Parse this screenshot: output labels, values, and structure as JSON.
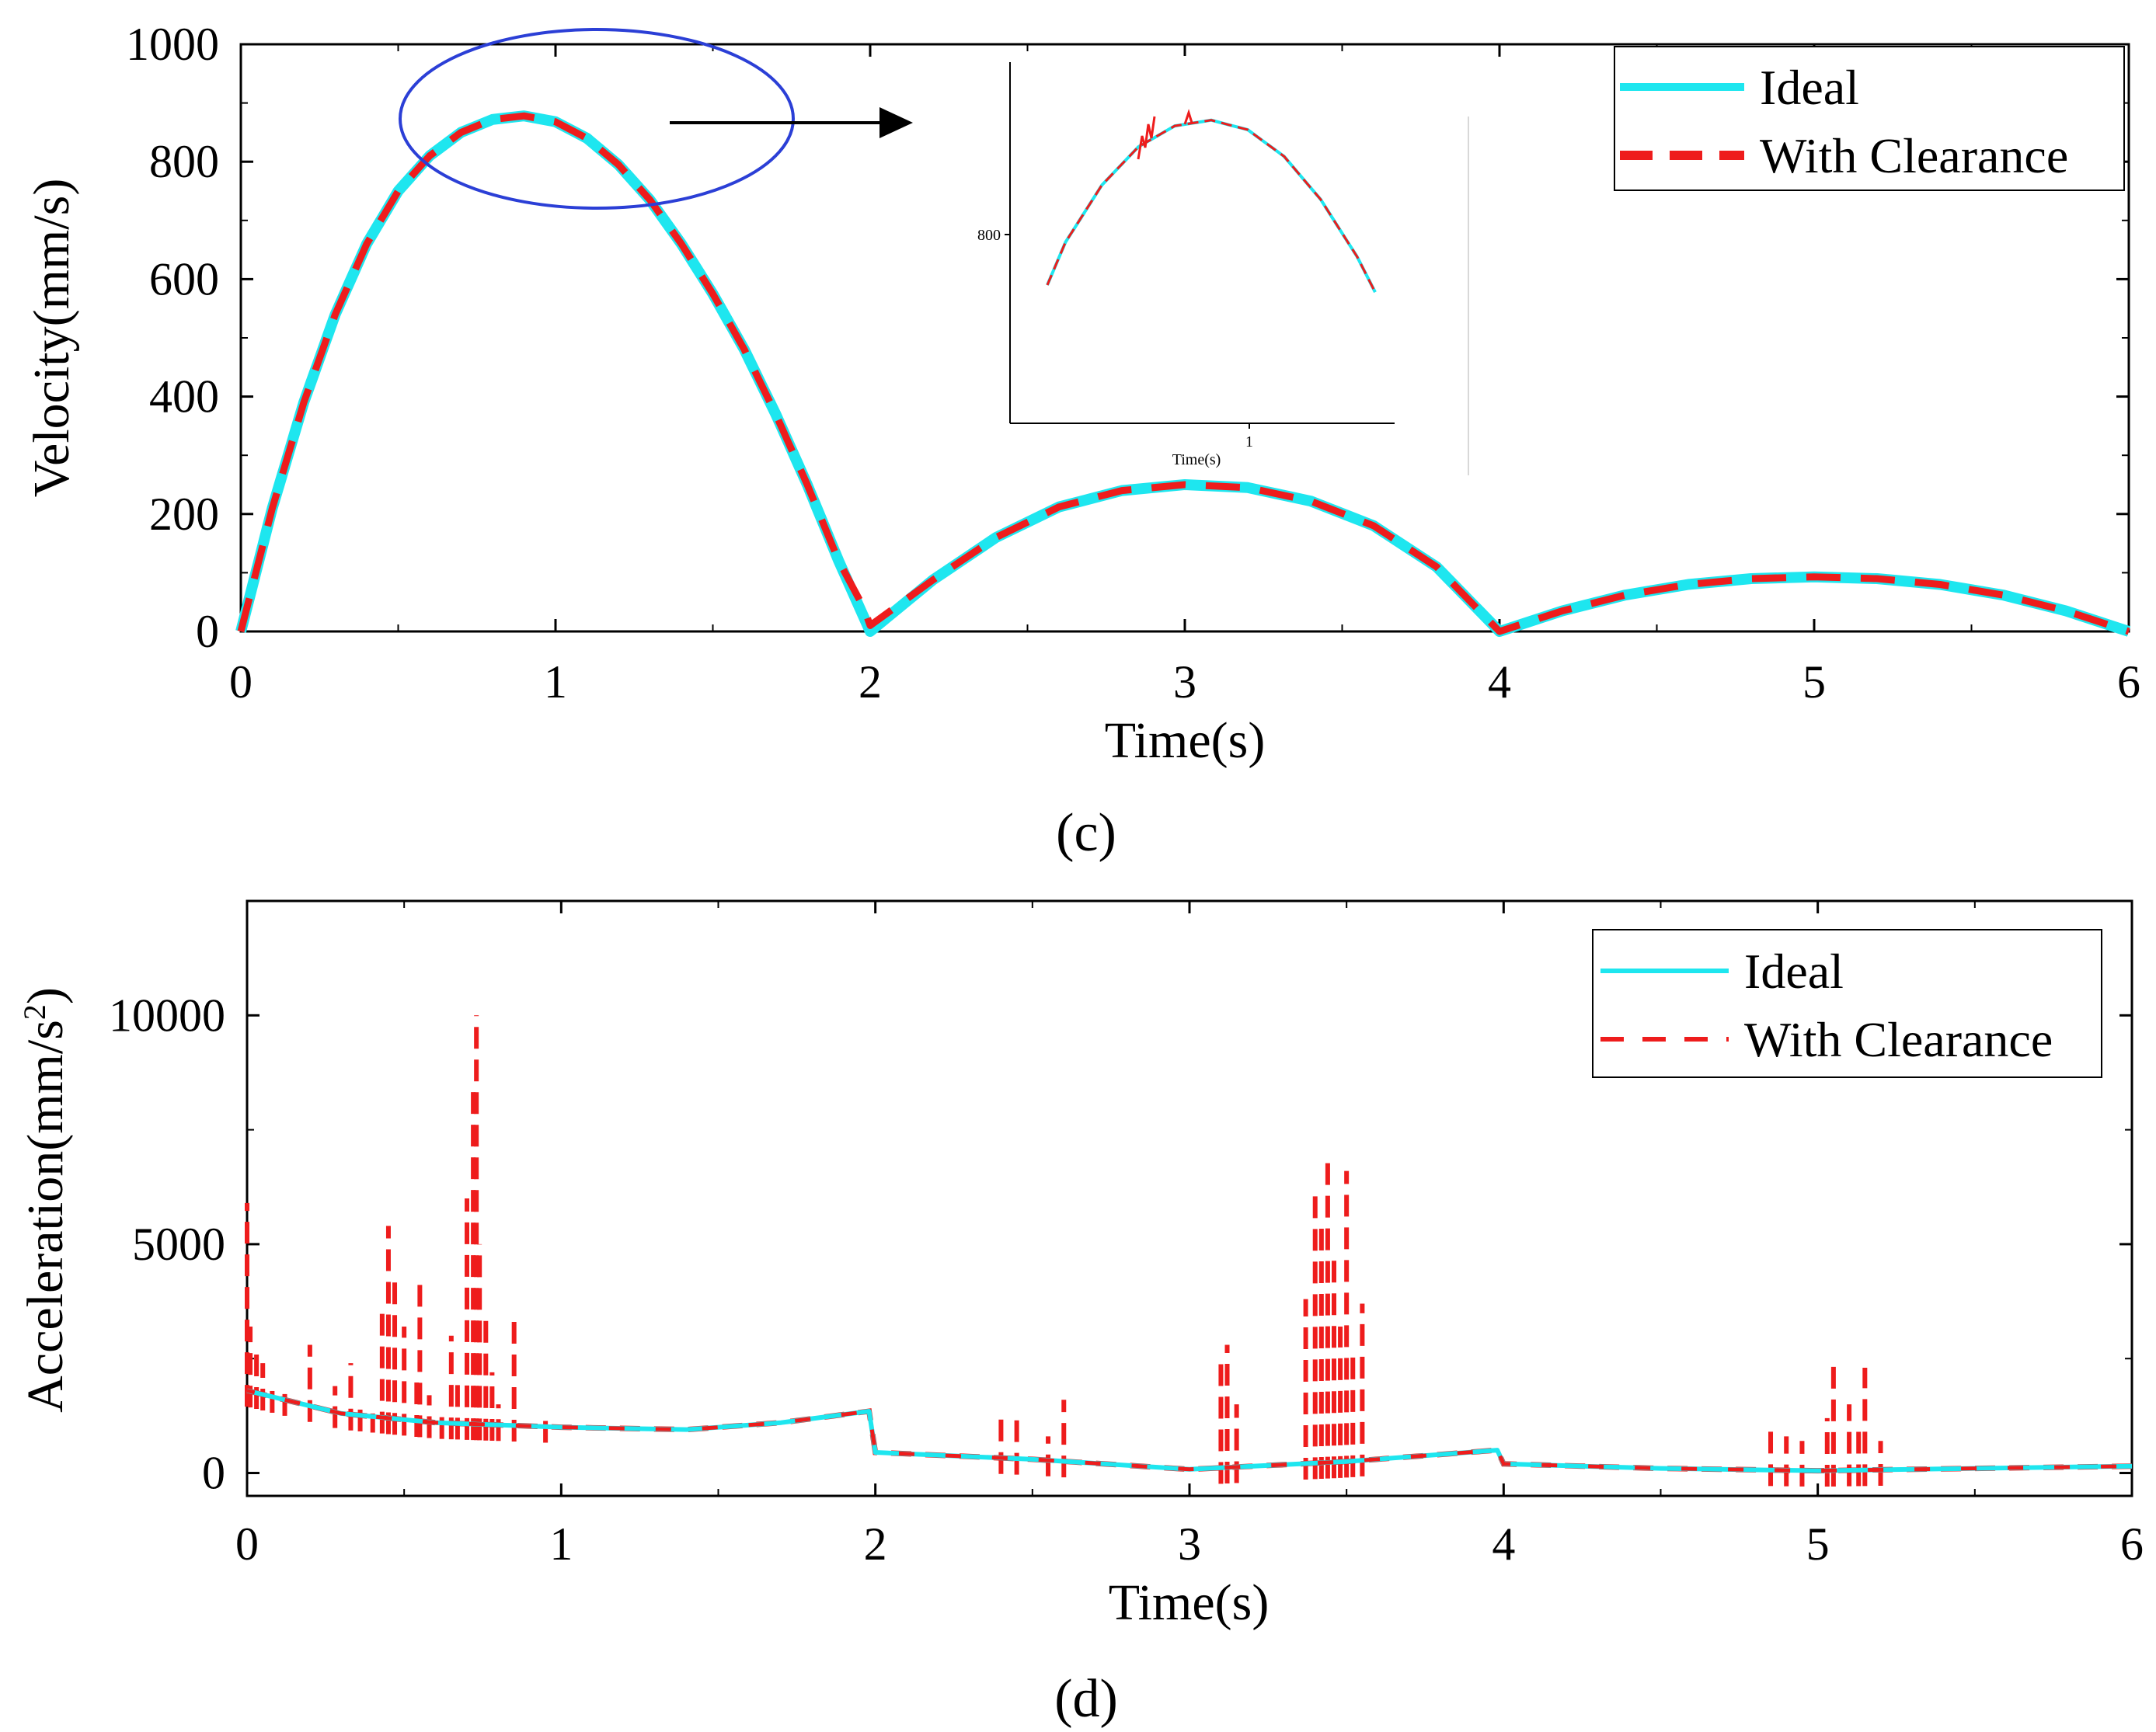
{
  "colors": {
    "ideal": "#1ee6ef",
    "clearance": "#ee1c1c",
    "highlight": "#2b3fd6",
    "axis": "#000000"
  },
  "chart_data": [
    {
      "type": "line",
      "panel_label": "(c)",
      "xlabel": "Time(s)",
      "ylabel": "Velocity(mm/s)",
      "xlim": [
        0,
        6
      ],
      "ylim": [
        0,
        1000
      ],
      "xticks": [
        0,
        1,
        2,
        3,
        4,
        5,
        6
      ],
      "xtick_labels": [
        "0",
        "1",
        "2",
        "3",
        "4",
        "5",
        "6"
      ],
      "yticks": [
        0,
        200,
        400,
        600,
        800,
        1000
      ],
      "ytick_labels": [
        "0",
        "200",
        "400",
        "600",
        "800",
        "1000"
      ],
      "legend": {
        "position": "top-right",
        "entries": [
          "Ideal",
          "With Clearance"
        ]
      },
      "series": [
        {
          "name": "Ideal",
          "style": "solid",
          "x": [
            0,
            0.1,
            0.2,
            0.3,
            0.4,
            0.5,
            0.6,
            0.7,
            0.8,
            0.9,
            1.0,
            1.1,
            1.2,
            1.3,
            1.4,
            1.5,
            1.6,
            1.7,
            1.8,
            1.9,
            2.0,
            2.2,
            2.4,
            2.6,
            2.8,
            3.0,
            3.2,
            3.4,
            3.6,
            3.8,
            4.0,
            4.2,
            4.4,
            4.6,
            4.8,
            5.0,
            5.2,
            5.4,
            5.6,
            5.8,
            6.0
          ],
          "y": [
            0,
            210,
            390,
            540,
            660,
            750,
            810,
            850,
            872,
            878,
            868,
            840,
            795,
            735,
            660,
            575,
            480,
            370,
            250,
            120,
            0,
            88,
            160,
            212,
            240,
            250,
            245,
            222,
            180,
            110,
            0,
            35,
            62,
            80,
            90,
            93,
            90,
            80,
            62,
            35,
            0
          ]
        },
        {
          "name": "With Clearance",
          "style": "dashed",
          "x": [
            0,
            0.1,
            0.2,
            0.3,
            0.4,
            0.5,
            0.6,
            0.7,
            0.8,
            0.9,
            1.0,
            1.1,
            1.2,
            1.3,
            1.4,
            1.5,
            1.6,
            1.7,
            1.8,
            1.9,
            1.98,
            2.0,
            2.2,
            2.4,
            2.6,
            2.8,
            3.0,
            3.2,
            3.4,
            3.6,
            3.8,
            4.0,
            4.2,
            4.4,
            4.6,
            4.8,
            5.0,
            5.2,
            5.4,
            5.6,
            5.8,
            6.0
          ],
          "y": [
            0,
            210,
            390,
            540,
            660,
            750,
            810,
            850,
            872,
            878,
            868,
            840,
            795,
            735,
            660,
            575,
            480,
            370,
            250,
            120,
            40,
            10,
            88,
            160,
            212,
            240,
            250,
            245,
            222,
            180,
            110,
            0,
            35,
            62,
            80,
            90,
            93,
            90,
            80,
            62,
            35,
            0
          ]
        }
      ],
      "annotations": {
        "highlight_region": {
          "x_center": 0.95,
          "y_center": 830
        },
        "inset": {
          "xlabel": "Time(s)",
          "ytick_label": "800",
          "xtick_label": "1"
        }
      }
    },
    {
      "type": "line",
      "panel_label": "(d)",
      "xlabel": "Time(s)",
      "ylabel": "Acceleration(mm/s",
      "ylabel_superscript": "2",
      "ylabel_suffix": ")",
      "xlim": [
        0,
        6
      ],
      "ylim": [
        -500,
        12500
      ],
      "xticks": [
        0,
        1,
        2,
        3,
        4,
        5,
        6
      ],
      "xtick_labels": [
        "0",
        "1",
        "2",
        "3",
        "4",
        "5",
        "6"
      ],
      "yticks": [
        0,
        5000,
        10000
      ],
      "ytick_labels": [
        "0",
        "5000",
        "10000"
      ],
      "legend": {
        "position": "top-right",
        "entries": [
          "Ideal",
          "With Clearance"
        ]
      },
      "series": [
        {
          "name": "Ideal",
          "style": "solid",
          "x": [
            0,
            0.3,
            0.6,
            1.0,
            1.4,
            1.7,
            1.98,
            2.0,
            2.5,
            3.0,
            3.5,
            3.98,
            4.0,
            4.5,
            5.0,
            5.5,
            6.0
          ],
          "y": [
            1800,
            1300,
            1100,
            1000,
            950,
            1100,
            1350,
            450,
            300,
            80,
            250,
            500,
            200,
            100,
            50,
            100,
            150
          ]
        },
        {
          "name": "With Clearance",
          "style": "dashed",
          "spikes": [
            [
              0.0,
              5900
            ],
            [
              0.01,
              3200
            ],
            [
              0.03,
              2700
            ],
            [
              0.05,
              2400
            ],
            [
              0.08,
              2000
            ],
            [
              0.12,
              1800
            ],
            [
              0.2,
              2800
            ],
            [
              0.28,
              1900
            ],
            [
              0.33,
              2400
            ],
            [
              0.36,
              1500
            ],
            [
              0.4,
              1300
            ],
            [
              0.43,
              3600
            ],
            [
              0.45,
              5400
            ],
            [
              0.47,
              4200
            ],
            [
              0.5,
              3200
            ],
            [
              0.54,
              2200
            ],
            [
              0.55,
              4300
            ],
            [
              0.58,
              1700
            ],
            [
              0.62,
              1400
            ],
            [
              0.65,
              3000
            ],
            [
              0.67,
              2000
            ],
            [
              0.7,
              6000
            ],
            [
              0.72,
              8400
            ],
            [
              0.73,
              10000
            ],
            [
              0.74,
              5000
            ],
            [
              0.76,
              3400
            ],
            [
              0.78,
              2200
            ],
            [
              0.8,
              1500
            ],
            [
              0.85,
              3400
            ],
            [
              0.95,
              1250
            ],
            [
              2.4,
              1200
            ],
            [
              2.45,
              1150
            ],
            [
              2.55,
              800
            ],
            [
              2.6,
              1600
            ],
            [
              3.1,
              2600
            ],
            [
              3.12,
              2800
            ],
            [
              3.15,
              1500
            ],
            [
              3.37,
              3800
            ],
            [
              3.4,
              6200
            ],
            [
              3.42,
              5500
            ],
            [
              3.44,
              7000
            ],
            [
              3.46,
              4800
            ],
            [
              3.48,
              3200
            ],
            [
              3.5,
              6600
            ],
            [
              3.52,
              2600
            ],
            [
              3.55,
              3700
            ],
            [
              4.85,
              1100
            ],
            [
              4.9,
              800
            ],
            [
              4.95,
              700
            ],
            [
              5.03,
              1200
            ],
            [
              5.05,
              2400
            ],
            [
              5.1,
              1500
            ],
            [
              5.13,
              1100
            ],
            [
              5.15,
              2300
            ],
            [
              5.2,
              700
            ]
          ]
        }
      ]
    }
  ]
}
